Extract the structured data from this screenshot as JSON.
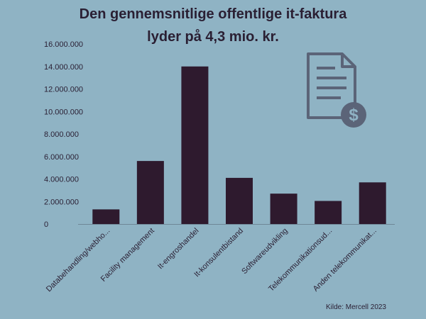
{
  "chart_data": {
    "type": "bar",
    "title_lines": [
      "Den gennemsnitlige offentlige it-faktura",
      "lyder på 4,3 mio. kr."
    ],
    "categories": [
      "Databehandling/webho...",
      "Facility management",
      "It-engroshandel",
      "It-konsulentbistand",
      "Softwareudvikling",
      "Telekommunikationsud...",
      "Anden telekommunikat..."
    ],
    "values": [
      1300000,
      5600000,
      14000000,
      4100000,
      2700000,
      2050000,
      3700000
    ],
    "ylim": [
      0,
      16000000
    ],
    "yticks": [
      0,
      2000000,
      4000000,
      6000000,
      8000000,
      10000000,
      12000000,
      14000000,
      16000000
    ],
    "ytick_labels": [
      "0",
      "2.000.000",
      "4.000.000",
      "6.000.000",
      "8.000.000",
      "10.000.000",
      "12.000.000",
      "14.000.000",
      "16.000.000"
    ],
    "grid": false,
    "bar_color": "#2e1a2e",
    "text_color": "#2a1f33"
  },
  "source": "Kilde: Mercell 2023",
  "icon": "invoice-dollar-icon",
  "icon_color": "#5b6478"
}
